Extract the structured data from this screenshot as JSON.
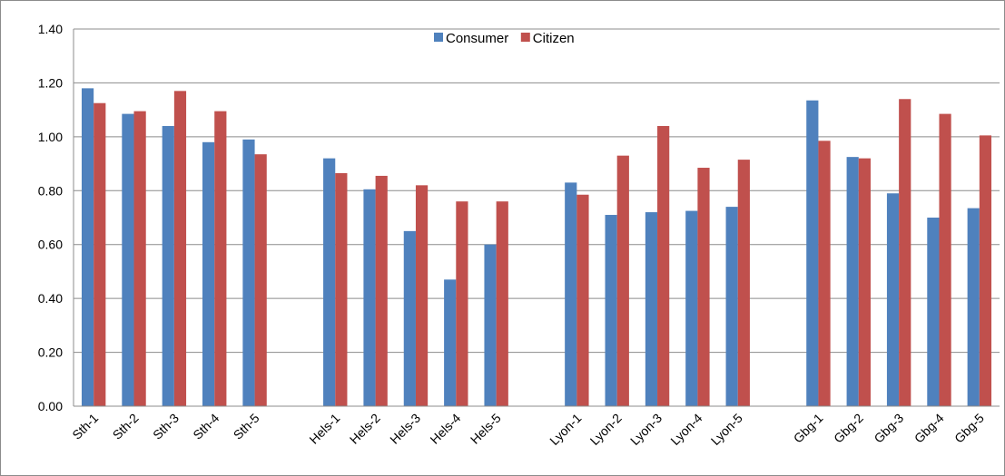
{
  "chart_data": {
    "type": "bar",
    "categories": [
      "Sth-1",
      "Sth-2",
      "Sth-3",
      "Sth-4",
      "Sth-5",
      "",
      "Hels-1",
      "Hels-2",
      "Hels-3",
      "Hels-4",
      "Hels-5",
      "",
      "Lyon-1",
      "Lyon-2",
      "Lyon-3",
      "Lyon-4",
      "Lyon-5",
      "",
      "Gbg-1",
      "Gbg-2",
      "Gbg-3",
      "Gbg-4",
      "Gbg-5"
    ],
    "series": [
      {
        "name": "Consumer",
        "color": "#4f81bd",
        "values": [
          1.18,
          1.085,
          1.04,
          0.98,
          0.99,
          null,
          0.92,
          0.805,
          0.65,
          0.47,
          0.6,
          null,
          0.83,
          0.71,
          0.72,
          0.725,
          0.74,
          null,
          1.135,
          0.925,
          0.79,
          0.7,
          0.735
        ]
      },
      {
        "name": "Citizen",
        "color": "#c0504d",
        "values": [
          1.125,
          1.095,
          1.17,
          1.095,
          0.935,
          null,
          0.865,
          0.855,
          0.82,
          0.76,
          0.76,
          null,
          0.785,
          0.93,
          1.04,
          0.885,
          0.915,
          null,
          0.985,
          0.92,
          1.14,
          1.085,
          1.005
        ]
      }
    ],
    "yticks": [
      "0.00",
      "0.20",
      "0.40",
      "0.60",
      "0.80",
      "1.00",
      "1.20",
      "1.40"
    ],
    "ylim": [
      0,
      1.4
    ],
    "grid": true,
    "legend_position": "top-center",
    "title": "",
    "xlabel": "",
    "ylabel": ""
  }
}
